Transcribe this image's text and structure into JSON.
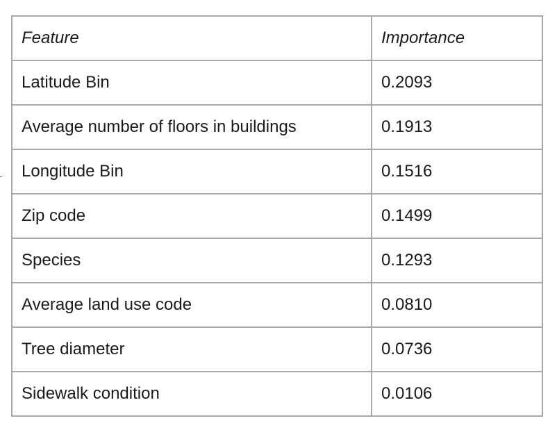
{
  "table": {
    "headers": [
      "Feature",
      "Importance"
    ],
    "rows": [
      [
        "Latitude Bin",
        "0.2093"
      ],
      [
        "Average number of floors in buildings",
        "0.1913"
      ],
      [
        "Longitude Bin",
        "0.1516"
      ],
      [
        "Zip code",
        "0.1499"
      ],
      [
        "Species",
        "0.1293"
      ],
      [
        "Average land use code",
        "0.0810"
      ],
      [
        "Tree diameter",
        "0.0736"
      ],
      [
        "Sidewalk condition",
        "0.0106"
      ]
    ]
  }
}
